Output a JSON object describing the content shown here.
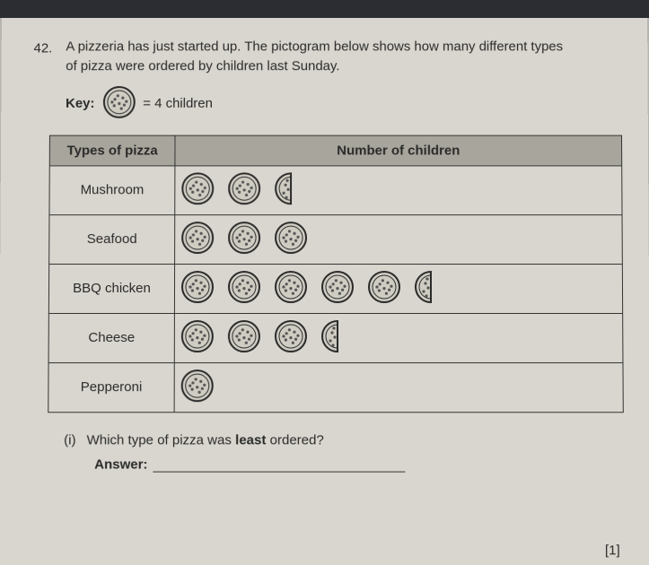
{
  "question_number": "42.",
  "question_text_line1": "A pizzeria has just started up. The pictogram below shows how many different types",
  "question_text_line2": "of pizza were ordered by children last Sunday.",
  "key_label": "Key:",
  "key_value_text": "= 4 children",
  "table": {
    "header_col1": "Types of pizza",
    "header_col2": "Number of children",
    "rows": [
      {
        "label": "Mushroom",
        "full": 2,
        "half": 1
      },
      {
        "label": "Seafood",
        "full": 3,
        "half": 0
      },
      {
        "label": "BBQ chicken",
        "full": 5,
        "half": 1
      },
      {
        "label": "Cheese",
        "full": 3,
        "half": 1
      },
      {
        "label": "Pepperoni",
        "full": 1,
        "half": 0
      }
    ]
  },
  "subpart_label": "(i)",
  "subpart_text_before": "Which type of pizza was ",
  "subpart_text_bold": "least",
  "subpart_text_after": " ordered?",
  "answer_label": "Answer:",
  "mark_text": "[1]",
  "icon": {
    "size": 38,
    "stroke": "#2a2a2a",
    "fill": "#cfccc2",
    "dot_fill": "#555"
  }
}
